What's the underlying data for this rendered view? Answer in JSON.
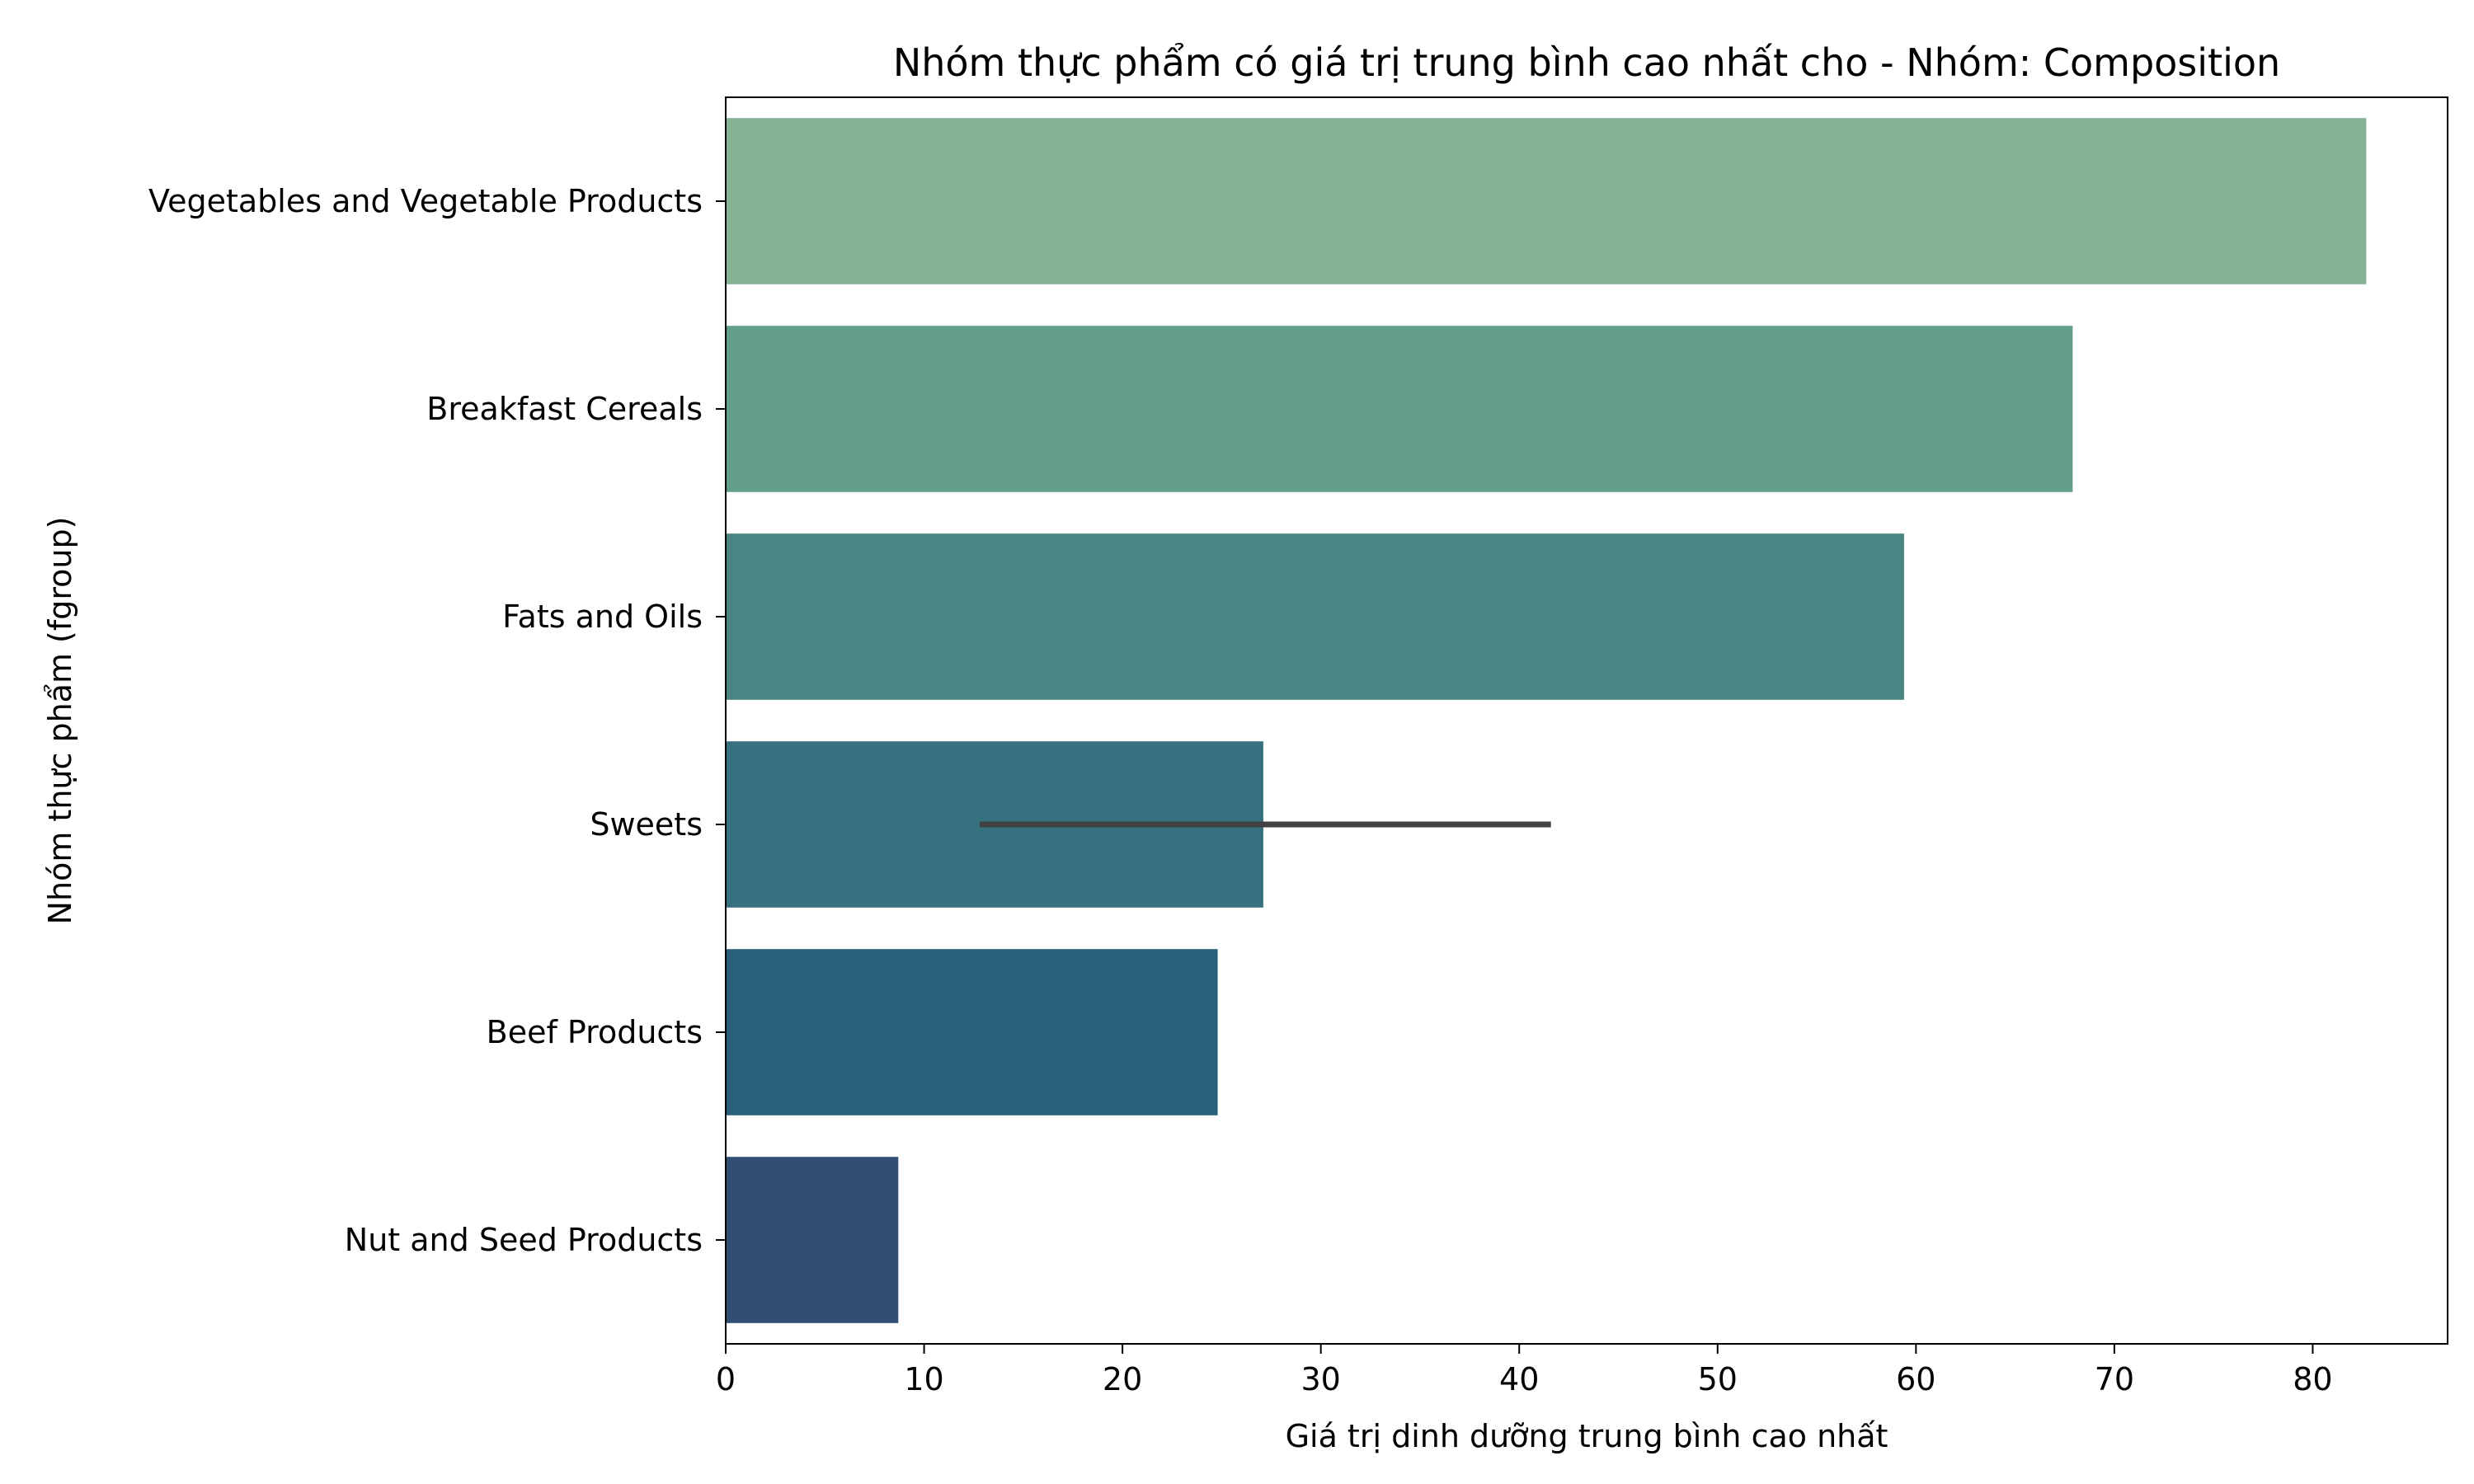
{
  "chart_data": {
    "type": "bar",
    "orientation": "horizontal",
    "title": "Nhóm thực phẩm có giá trị trung bình cao nhất cho - Nhóm: Composition",
    "xlabel": "Giá trị dinh dưỡng trung bình cao nhất",
    "ylabel": "Nhóm thực phẩm (fgroup)",
    "categories": [
      "Vegetables and Vegetable Products",
      "Breakfast Cereals",
      "Fats and Oils",
      "Sweets",
      "Beef Products",
      "Nut and Seed Products"
    ],
    "values": [
      82.7,
      67.9,
      59.4,
      27.1,
      24.8,
      8.7
    ],
    "error_bars": [
      null,
      null,
      null,
      [
        12.8,
        41.6
      ],
      null,
      null
    ],
    "colors": [
      "#87b293",
      "#639d8c",
      "#4a8584",
      "#36717f",
      "#2a5f7a",
      "#314e73"
    ],
    "error_bar_color": "#424242",
    "xlim": [
      0,
      86.8
    ],
    "xticks": [
      0,
      10,
      20,
      30,
      40,
      50,
      60,
      70,
      80
    ],
    "grid": false,
    "legend": "none"
  }
}
